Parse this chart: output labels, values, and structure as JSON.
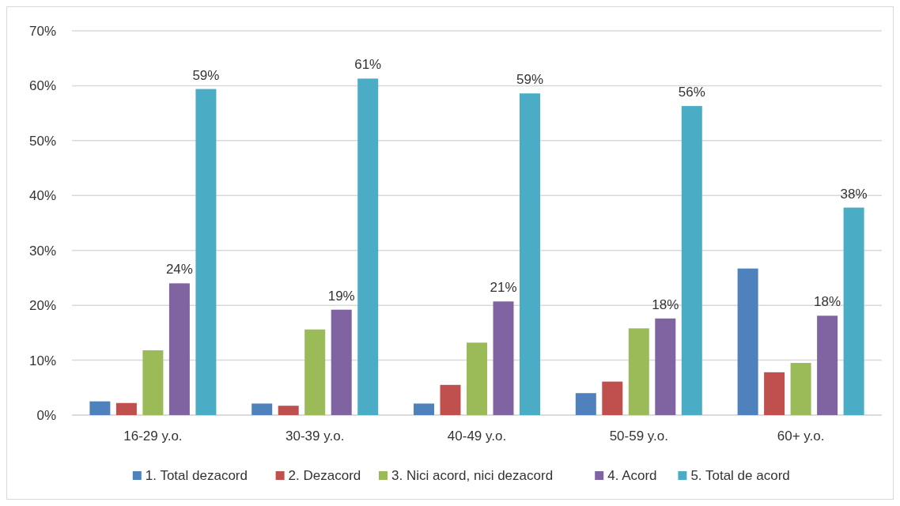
{
  "chart_data": {
    "type": "bar",
    "categories": [
      "16-29 y.o.",
      "30-39 y.o.",
      "40-49 y.o.",
      "50-59 y.o.",
      "60+ y.o."
    ],
    "series": [
      {
        "name": "1. Total dezacord",
        "color": "#4f81bd",
        "values": [
          2.5,
          2.1,
          2.1,
          4.0,
          26.7
        ]
      },
      {
        "name": "2. Dezacord",
        "color": "#c0504d",
        "values": [
          2.2,
          1.7,
          5.5,
          6.1,
          7.8
        ]
      },
      {
        "name": "3. Nici acord, nici dezacord",
        "color": "#9bbb59",
        "values": [
          11.8,
          15.6,
          13.2,
          15.8,
          9.5
        ]
      },
      {
        "name": "4. Acord",
        "color": "#8064a2",
        "values": [
          24.0,
          19.2,
          20.7,
          17.6,
          18.1
        ],
        "value_labels": [
          "24%",
          "19%",
          "21%",
          "18%",
          "18%"
        ]
      },
      {
        "name": "5. Total de acord",
        "color": "#4bacc6",
        "values": [
          59.4,
          61.3,
          58.6,
          56.3,
          37.8
        ],
        "value_labels": [
          "59%",
          "61%",
          "59%",
          "56%",
          "38%"
        ]
      }
    ],
    "ylim": [
      0,
      70
    ],
    "yticks": [
      {
        "value": 0,
        "label": "0%"
      },
      {
        "value": 10,
        "label": "10%"
      },
      {
        "value": 20,
        "label": "20%"
      },
      {
        "value": 30,
        "label": "30%"
      },
      {
        "value": 40,
        "label": "40%"
      },
      {
        "value": 50,
        "label": "50%"
      },
      {
        "value": 60,
        "label": "60%"
      },
      {
        "value": 70,
        "label": "70%"
      }
    ],
    "grid": "y",
    "legend": "bottom"
  }
}
